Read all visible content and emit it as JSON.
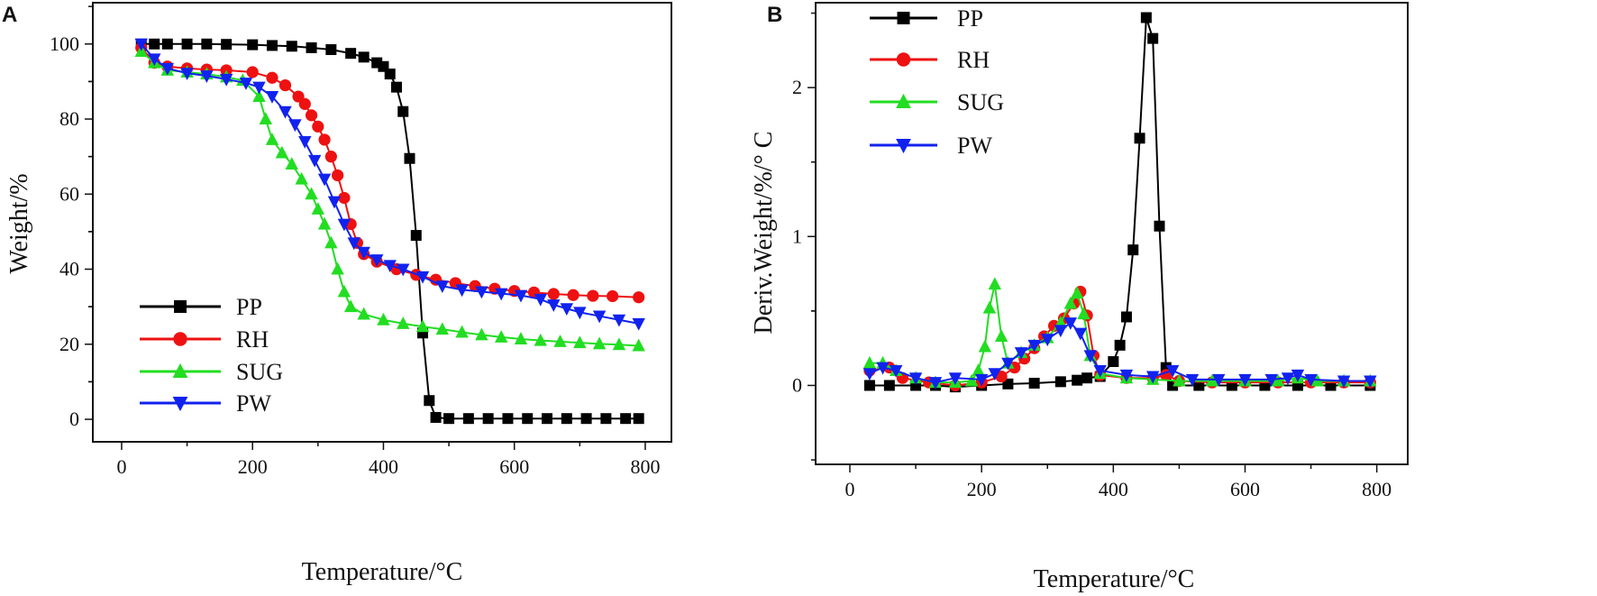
{
  "chart_data": [
    {
      "panel_label": "A",
      "type": "line",
      "xlabel": "Temperature/°C",
      "ylabel": "Weight/%",
      "xlim": [
        -44,
        840
      ],
      "ylim": [
        -6,
        111
      ],
      "xticks": [
        0,
        200,
        400,
        600,
        800
      ],
      "yticks": [
        0,
        20,
        40,
        60,
        80,
        100
      ],
      "grid": false,
      "legend_position": "bottom-left",
      "series": [
        {
          "name": "PP",
          "color": "#000000",
          "marker": "square",
          "points": [
            [
              30,
              100
            ],
            [
              50,
              100
            ],
            [
              70,
              100
            ],
            [
              100,
              100
            ],
            [
              130,
              100
            ],
            [
              160,
              99.9
            ],
            [
              200,
              99.8
            ],
            [
              230,
              99.6
            ],
            [
              260,
              99.4
            ],
            [
              290,
              99
            ],
            [
              320,
              98.5
            ],
            [
              350,
              97.5
            ],
            [
              370,
              96.5
            ],
            [
              390,
              95
            ],
            [
              400,
              94
            ],
            [
              410,
              92
            ],
            [
              420,
              88.5
            ],
            [
              430,
              82
            ],
            [
              440,
              69.5
            ],
            [
              450,
              49
            ],
            [
              460,
              23
            ],
            [
              470,
              5
            ],
            [
              480,
              0.5
            ],
            [
              500,
              0.2
            ],
            [
              530,
              0.2
            ],
            [
              560,
              0.2
            ],
            [
              590,
              0.2
            ],
            [
              620,
              0.2
            ],
            [
              650,
              0.2
            ],
            [
              680,
              0.2
            ],
            [
              710,
              0.2
            ],
            [
              740,
              0.2
            ],
            [
              770,
              0.2
            ],
            [
              790,
              0.2
            ]
          ]
        },
        {
          "name": "RH",
          "color": "#ee1111",
          "marker": "circle",
          "points": [
            [
              30,
              99
            ],
            [
              50,
              95
            ],
            [
              70,
              94
            ],
            [
              100,
              93.5
            ],
            [
              130,
              93.2
            ],
            [
              160,
              93
            ],
            [
              200,
              92.5
            ],
            [
              230,
              91
            ],
            [
              250,
              89
            ],
            [
              270,
              86
            ],
            [
              280,
              84
            ],
            [
              290,
              81
            ],
            [
              300,
              78
            ],
            [
              310,
              74.5
            ],
            [
              320,
              70
            ],
            [
              330,
              65
            ],
            [
              340,
              59
            ],
            [
              350,
              52
            ],
            [
              360,
              47
            ],
            [
              370,
              44
            ],
            [
              390,
              42
            ],
            [
              420,
              40
            ],
            [
              450,
              38.5
            ],
            [
              480,
              37.2
            ],
            [
              510,
              36.3
            ],
            [
              540,
              35.5
            ],
            [
              570,
              34.8
            ],
            [
              600,
              34.2
            ],
            [
              630,
              33.8
            ],
            [
              660,
              33.4
            ],
            [
              690,
              33.1
            ],
            [
              720,
              32.9
            ],
            [
              750,
              32.8
            ],
            [
              790,
              32.5
            ]
          ]
        },
        {
          "name": "SUG",
          "color": "#22dd22",
          "marker": "triangle-up",
          "points": [
            [
              30,
              98
            ],
            [
              50,
              95
            ],
            [
              70,
              93
            ],
            [
              100,
              92.5
            ],
            [
              130,
              92
            ],
            [
              160,
              91.2
            ],
            [
              185,
              90.3
            ],
            [
              210,
              86
            ],
            [
              220,
              80
            ],
            [
              230,
              74.5
            ],
            [
              245,
              71
            ],
            [
              260,
              68
            ],
            [
              275,
              64
            ],
            [
              290,
              60
            ],
            [
              300,
              56
            ],
            [
              310,
              52
            ],
            [
              320,
              47
            ],
            [
              330,
              40
            ],
            [
              340,
              34
            ],
            [
              350,
              30
            ],
            [
              370,
              28
            ],
            [
              400,
              26.5
            ],
            [
              430,
              25.5
            ],
            [
              460,
              24.7
            ],
            [
              490,
              24
            ],
            [
              520,
              23.2
            ],
            [
              550,
              22.5
            ],
            [
              580,
              21.9
            ],
            [
              610,
              21.4
            ],
            [
              640,
              21
            ],
            [
              670,
              20.7
            ],
            [
              700,
              20.4
            ],
            [
              730,
              20.1
            ],
            [
              760,
              19.9
            ],
            [
              790,
              19.6
            ]
          ]
        },
        {
          "name": "PW",
          "color": "#1122ee",
          "marker": "triangle-down",
          "points": [
            [
              30,
              100
            ],
            [
              50,
              96
            ],
            [
              70,
              93.5
            ],
            [
              100,
              92.2
            ],
            [
              130,
              91.5
            ],
            [
              160,
              90.6
            ],
            [
              190,
              89.6
            ],
            [
              210,
              88.5
            ],
            [
              230,
              86
            ],
            [
              250,
              82
            ],
            [
              265,
              78.5
            ],
            [
              280,
              74
            ],
            [
              295,
              69
            ],
            [
              310,
              64
            ],
            [
              325,
              58
            ],
            [
              340,
              52
            ],
            [
              355,
              47
            ],
            [
              370,
              44.5
            ],
            [
              390,
              42.5
            ],
            [
              410,
              41
            ],
            [
              430,
              40
            ],
            [
              460,
              38
            ],
            [
              490,
              35.5
            ],
            [
              520,
              34.5
            ],
            [
              550,
              34
            ],
            [
              580,
              33.5
            ],
            [
              610,
              33
            ],
            [
              640,
              32
            ],
            [
              660,
              30.5
            ],
            [
              680,
              29.5
            ],
            [
              700,
              28.5
            ],
            [
              730,
              27.5
            ],
            [
              760,
              26.5
            ],
            [
              790,
              25.5
            ]
          ]
        }
      ]
    },
    {
      "panel_label": "B",
      "type": "line",
      "xlabel": "Temperature/°C",
      "ylabel": "Deriv.Weight/%/° C",
      "xlim": [
        -52,
        847
      ],
      "ylim": [
        -0.53,
        2.57
      ],
      "xticks": [
        0,
        200,
        400,
        600,
        800
      ],
      "yticks": [
        0,
        1,
        2
      ],
      "grid": false,
      "legend_position": "top-left",
      "series": [
        {
          "name": "PP",
          "color": "#000000",
          "marker": "square",
          "points": [
            [
              30,
              0
            ],
            [
              60,
              0
            ],
            [
              100,
              0
            ],
            [
              130,
              0
            ],
            [
              160,
              -0.01
            ],
            [
              200,
              0
            ],
            [
              240,
              0.01
            ],
            [
              280,
              0.015
            ],
            [
              320,
              0.025
            ],
            [
              345,
              0.035
            ],
            [
              360,
              0.05
            ],
            [
              380,
              0.06
            ],
            [
              400,
              0.16
            ],
            [
              410,
              0.27
            ],
            [
              420,
              0.46
            ],
            [
              430,
              0.91
            ],
            [
              440,
              1.66
            ],
            [
              450,
              2.47
            ],
            [
              460,
              2.33
            ],
            [
              470,
              1.07
            ],
            [
              480,
              0.12
            ],
            [
              490,
              0
            ],
            [
              530,
              0
            ],
            [
              580,
              0
            ],
            [
              630,
              0
            ],
            [
              680,
              0
            ],
            [
              730,
              0
            ],
            [
              790,
              0
            ]
          ]
        },
        {
          "name": "RH",
          "color": "#ee1111",
          "marker": "circle",
          "points": [
            [
              30,
              0.1
            ],
            [
              60,
              0.12
            ],
            [
              80,
              0.05
            ],
            [
              120,
              0.02
            ],
            [
              160,
              0
            ],
            [
              200,
              0.02
            ],
            [
              230,
              0.06
            ],
            [
              250,
              0.12
            ],
            [
              265,
              0.18
            ],
            [
              280,
              0.25
            ],
            [
              295,
              0.33
            ],
            [
              310,
              0.4
            ],
            [
              325,
              0.45
            ],
            [
              340,
              0.55
            ],
            [
              350,
              0.63
            ],
            [
              360,
              0.47
            ],
            [
              370,
              0.2
            ],
            [
              380,
              0.07
            ],
            [
              420,
              0.05
            ],
            [
              460,
              0.05
            ],
            [
              480,
              0.07
            ],
            [
              500,
              0.03
            ],
            [
              550,
              0.02
            ],
            [
              600,
              0.02
            ],
            [
              650,
              0.02
            ],
            [
              700,
              0.02
            ],
            [
              750,
              0.02
            ],
            [
              790,
              0.02
            ]
          ]
        },
        {
          "name": "SUG",
          "color": "#22dd22",
          "marker": "triangle-up",
          "points": [
            [
              30,
              0.15
            ],
            [
              50,
              0.15
            ],
            [
              70,
              0.1
            ],
            [
              100,
              0.05
            ],
            [
              130,
              0.02
            ],
            [
              160,
              0.02
            ],
            [
              185,
              0.03
            ],
            [
              195,
              0.1
            ],
            [
              205,
              0.26
            ],
            [
              212,
              0.52
            ],
            [
              220,
              0.68
            ],
            [
              230,
              0.33
            ],
            [
              240,
              0.15
            ],
            [
              260,
              0.22
            ],
            [
              280,
              0.27
            ],
            [
              300,
              0.32
            ],
            [
              320,
              0.42
            ],
            [
              335,
              0.55
            ],
            [
              345,
              0.62
            ],
            [
              355,
              0.48
            ],
            [
              365,
              0.2
            ],
            [
              380,
              0.08
            ],
            [
              420,
              0.05
            ],
            [
              460,
              0.04
            ],
            [
              500,
              0.03
            ],
            [
              550,
              0.03
            ],
            [
              600,
              0.03
            ],
            [
              650,
              0.03
            ],
            [
              680,
              0.05
            ],
            [
              710,
              0.03
            ],
            [
              750,
              0.03
            ],
            [
              790,
              0.03
            ]
          ]
        },
        {
          "name": "PW",
          "color": "#1122ee",
          "marker": "triangle-down",
          "points": [
            [
              30,
              0.08
            ],
            [
              50,
              0.12
            ],
            [
              70,
              0.1
            ],
            [
              100,
              0.05
            ],
            [
              130,
              0.02
            ],
            [
              160,
              0.05
            ],
            [
              200,
              0.04
            ],
            [
              220,
              0.08
            ],
            [
              240,
              0.15
            ],
            [
              260,
              0.22
            ],
            [
              280,
              0.27
            ],
            [
              300,
              0.31
            ],
            [
              320,
              0.37
            ],
            [
              335,
              0.42
            ],
            [
              350,
              0.35
            ],
            [
              365,
              0.2
            ],
            [
              380,
              0.1
            ],
            [
              420,
              0.07
            ],
            [
              460,
              0.06
            ],
            [
              490,
              0.1
            ],
            [
              520,
              0.04
            ],
            [
              560,
              0.04
            ],
            [
              600,
              0.04
            ],
            [
              640,
              0.04
            ],
            [
              665,
              0.05
            ],
            [
              680,
              0.07
            ],
            [
              700,
              0.04
            ],
            [
              750,
              0.03
            ],
            [
              790,
              0.03
            ]
          ]
        }
      ]
    }
  ]
}
